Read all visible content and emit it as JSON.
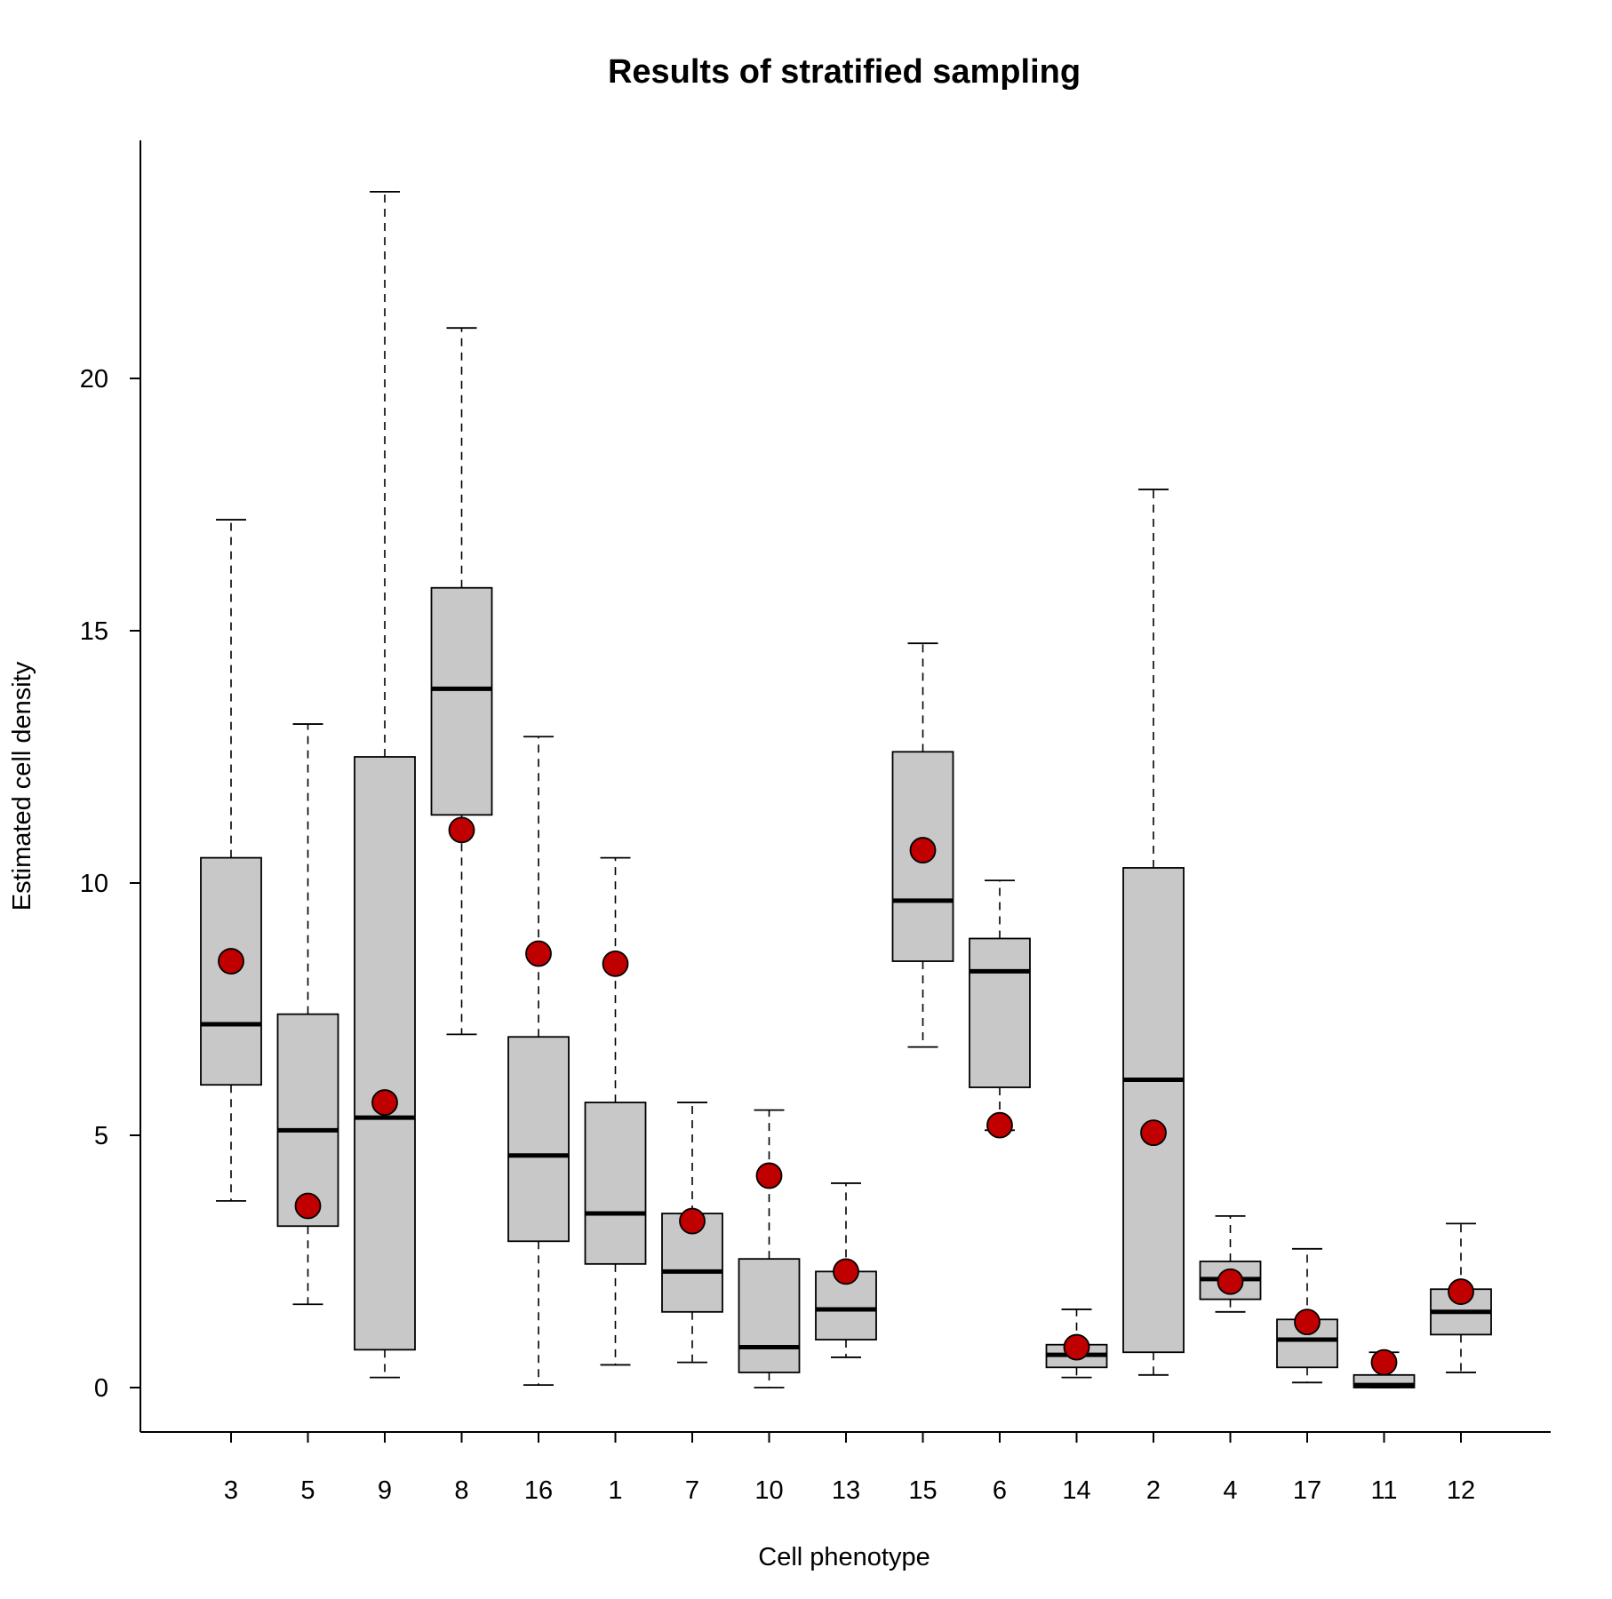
{
  "chart_data": {
    "type": "box",
    "title": "Results of stratified sampling",
    "xlabel": "Cell phenotype",
    "ylabel": "Estimated cell density",
    "ylim": [
      -0.9,
      24.7
    ],
    "yticks": [
      0,
      5,
      10,
      15,
      20
    ],
    "ytick_labels": [
      "0",
      "5",
      "10",
      "15",
      "20"
    ],
    "grid": false,
    "colors": {
      "box_fill": "#c8c8c8",
      "box_stroke": "#000000",
      "point_fill": "#c00000",
      "point_stroke": "#000000"
    },
    "categories": [
      "3",
      "5",
      "9",
      "8",
      "16",
      "1",
      "7",
      "10",
      "13",
      "15",
      "6",
      "14",
      "2",
      "4",
      "17",
      "11",
      "12"
    ],
    "boxes": [
      {
        "category": "3",
        "whisker_low": 3.7,
        "q1": 6.0,
        "median": 7.2,
        "q3": 10.5,
        "whisker_high": 17.2
      },
      {
        "category": "5",
        "whisker_low": 1.65,
        "q1": 3.2,
        "median": 5.1,
        "q3": 7.4,
        "whisker_high": 13.15
      },
      {
        "category": "9",
        "whisker_low": 0.2,
        "q1": 0.75,
        "median": 5.35,
        "q3": 12.5,
        "whisker_high": 23.7
      },
      {
        "category": "8",
        "whisker_low": 7.0,
        "q1": 11.35,
        "median": 13.85,
        "q3": 15.85,
        "whisker_high": 21.0
      },
      {
        "category": "16",
        "whisker_low": 0.05,
        "q1": 2.9,
        "median": 4.6,
        "q3": 6.95,
        "whisker_high": 12.9
      },
      {
        "category": "1",
        "whisker_low": 0.45,
        "q1": 2.45,
        "median": 3.45,
        "q3": 5.65,
        "whisker_high": 10.5
      },
      {
        "category": "7",
        "whisker_low": 0.5,
        "q1": 1.5,
        "median": 2.3,
        "q3": 3.45,
        "whisker_high": 5.65
      },
      {
        "category": "10",
        "whisker_low": 0.0,
        "q1": 0.3,
        "median": 0.8,
        "q3": 2.55,
        "whisker_high": 5.5
      },
      {
        "category": "13",
        "whisker_low": 0.6,
        "q1": 0.95,
        "median": 1.55,
        "q3": 2.3,
        "whisker_high": 4.05
      },
      {
        "category": "15",
        "whisker_low": 6.75,
        "q1": 8.45,
        "median": 9.65,
        "q3": 12.6,
        "whisker_high": 14.75
      },
      {
        "category": "6",
        "whisker_low": 5.1,
        "q1": 5.95,
        "median": 8.25,
        "q3": 8.9,
        "whisker_high": 10.05
      },
      {
        "category": "14",
        "whisker_low": 0.2,
        "q1": 0.4,
        "median": 0.65,
        "q3": 0.85,
        "whisker_high": 1.55
      },
      {
        "category": "2",
        "whisker_low": 0.25,
        "q1": 0.7,
        "median": 6.1,
        "q3": 10.3,
        "whisker_high": 17.8
      },
      {
        "category": "4",
        "whisker_low": 1.5,
        "q1": 1.75,
        "median": 2.15,
        "q3": 2.5,
        "whisker_high": 3.4
      },
      {
        "category": "17",
        "whisker_low": 0.1,
        "q1": 0.4,
        "median": 0.95,
        "q3": 1.35,
        "whisker_high": 2.75
      },
      {
        "category": "11",
        "whisker_low": 0.0,
        "q1": 0.0,
        "median": 0.05,
        "q3": 0.25,
        "whisker_high": 0.7
      },
      {
        "category": "12",
        "whisker_low": 0.3,
        "q1": 1.05,
        "median": 1.5,
        "q3": 1.95,
        "whisker_high": 3.25
      }
    ],
    "points": [
      {
        "category": "3",
        "y": 8.45
      },
      {
        "category": "5",
        "y": 3.6
      },
      {
        "category": "9",
        "y": 5.65
      },
      {
        "category": "8",
        "y": 11.05
      },
      {
        "category": "16",
        "y": 8.6
      },
      {
        "category": "1",
        "y": 8.4
      },
      {
        "category": "7",
        "y": 3.3
      },
      {
        "category": "10",
        "y": 4.2
      },
      {
        "category": "13",
        "y": 2.3
      },
      {
        "category": "15",
        "y": 10.65
      },
      {
        "category": "6",
        "y": 5.2
      },
      {
        "category": "14",
        "y": 0.8
      },
      {
        "category": "2",
        "y": 5.05
      },
      {
        "category": "4",
        "y": 2.1
      },
      {
        "category": "17",
        "y": 1.3
      },
      {
        "category": "11",
        "y": 0.5
      },
      {
        "category": "12",
        "y": 1.9
      }
    ]
  }
}
